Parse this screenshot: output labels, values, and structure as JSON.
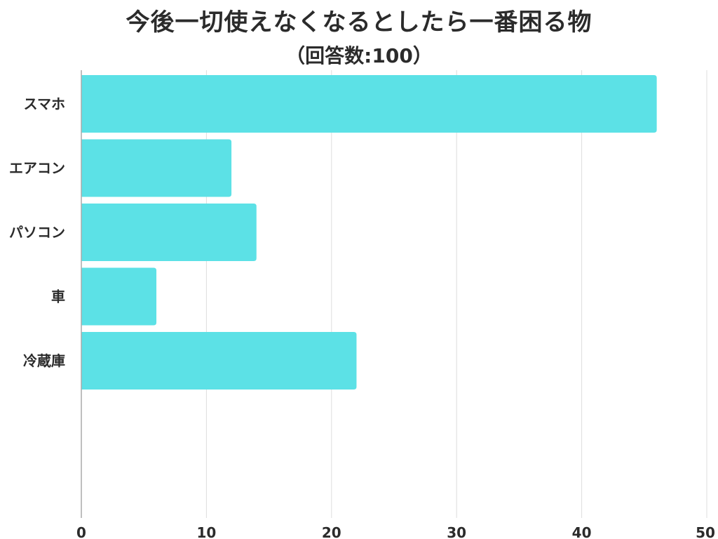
{
  "chart_data": {
    "type": "bar",
    "orientation": "horizontal",
    "title": "今後一切使えなくなるとしたら一番困る物",
    "subtitle": "（回答数:100）",
    "categories": [
      "スマホ",
      "エアコン",
      "パソコン",
      "車",
      "冷蔵庫"
    ],
    "values": [
      46,
      12,
      14,
      6,
      22
    ],
    "xlim": [
      0,
      50
    ],
    "xticks": [
      "0",
      "10",
      "20",
      "30",
      "40",
      "50"
    ],
    "grid": true,
    "bar_color": "#5ce1e6"
  }
}
